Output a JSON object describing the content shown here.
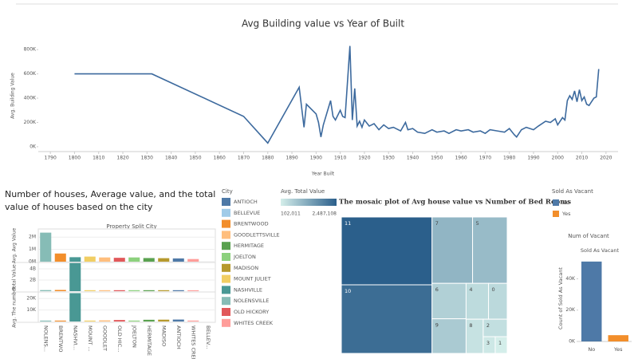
{
  "chart_data": [
    {
      "type": "line",
      "title": "Avg Building value vs Year of Built",
      "x_label": "Year Built",
      "y_label": "Avg. Building Value",
      "color": "#3d6a9e",
      "x": [
        1800,
        1832,
        1870,
        1880,
        1893,
        1895,
        1896,
        1900,
        1901,
        1902,
        1903,
        1906,
        1907,
        1908,
        1910,
        1911,
        1912,
        1914,
        1915,
        1916,
        1917,
        1918,
        1919,
        1920,
        1922,
        1924,
        1926,
        1928,
        1930,
        1932,
        1935,
        1937,
        1938,
        1940,
        1942,
        1945,
        1948,
        1950,
        1953,
        1955,
        1958,
        1960,
        1963,
        1965,
        1968,
        1970,
        1972,
        1975,
        1978,
        1980,
        1982,
        1983,
        1985,
        1987,
        1990,
        1992,
        1995,
        1997,
        1999,
        2000,
        2002,
        2003,
        2004,
        2005,
        2006,
        2007,
        2008,
        2009,
        2010,
        2011,
        2012,
        2013,
        2014,
        2015,
        2016,
        2017
      ],
      "values": [
        600000,
        600000,
        250000,
        30000,
        490000,
        160000,
        350000,
        270000,
        200000,
        80000,
        180000,
        380000,
        250000,
        220000,
        300000,
        250000,
        240000,
        830000,
        220000,
        480000,
        170000,
        210000,
        160000,
        220000,
        170000,
        190000,
        140000,
        180000,
        150000,
        160000,
        130000,
        200000,
        140000,
        150000,
        120000,
        110000,
        140000,
        120000,
        130000,
        110000,
        140000,
        130000,
        140000,
        120000,
        130000,
        110000,
        140000,
        130000,
        120000,
        150000,
        100000,
        80000,
        140000,
        160000,
        140000,
        170000,
        210000,
        200000,
        230000,
        180000,
        240000,
        220000,
        380000,
        420000,
        390000,
        460000,
        370000,
        470000,
        380000,
        410000,
        350000,
        340000,
        370000,
        400000,
        410000,
        640000
      ],
      "xlim": [
        1785,
        2025
      ],
      "ylim": [
        -40000,
        880000
      ],
      "xticks": [
        1790,
        1800,
        1810,
        1820,
        1830,
        1840,
        1850,
        1860,
        1870,
        1880,
        1890,
        1900,
        1910,
        1920,
        1930,
        1940,
        1950,
        1960,
        1970,
        1980,
        1990,
        2000,
        2010,
        2020
      ],
      "yticks": [
        {
          "value": 0,
          "label": "0K"
        },
        {
          "value": 200000,
          "label": "200K"
        },
        {
          "value": 400000,
          "label": "400K"
        },
        {
          "value": 600000,
          "label": "600K"
        },
        {
          "value": 800000,
          "label": "800K"
        }
      ]
    },
    {
      "type": "small-multiples-bar",
      "title": "Number of houses, Average value, and the total value of houses based on the city",
      "subtitle": "Property Split City",
      "categories": [
        "NOLENS...",
        "BRENTWO",
        "NASHVI...",
        "MOUNT ...",
        "GOODLET",
        "OLD HIC...",
        "JOELTON",
        "HERMITAGE",
        "MADISO",
        "ANTIOCH",
        "WHITES CREEK",
        "BELLEV..."
      ],
      "category_colors": [
        "#86bcb6",
        "#f28e2b",
        "#499894",
        "#f1ce63",
        "#ffbe7d",
        "#e15759",
        "#8cd17d",
        "#59a14f",
        "#b6992d",
        "#4e79a7",
        "#ff9d9a",
        "#a0cbe8"
      ],
      "panels": [
        {
          "label": "Avg. Avg Value",
          "ylim": [
            0,
            2600000
          ],
          "yticks": [
            {
              "value": 0,
              "label": "0M"
            },
            {
              "value": 1000000,
              "label": "1M"
            },
            {
              "value": 2000000,
              "label": "2M"
            }
          ],
          "values": [
            2300000,
            600000,
            300000,
            350000,
            280000,
            250000,
            280000,
            230000,
            220000,
            200000,
            150000,
            null
          ]
        },
        {
          "label": "Total Value",
          "ylim": [
            0,
            5000000000
          ],
          "yticks": [
            {
              "value": 2000000000,
              "label": "2B"
            },
            {
              "value": 4000000000,
              "label": "4B"
            }
          ],
          "values": [
            50000000,
            80000000,
            4900000000,
            30000000,
            30000000,
            30000000,
            30000000,
            30000000,
            30000000,
            30000000,
            20000000,
            null
          ]
        },
        {
          "label": "Avg. The number",
          "ylim": [
            0,
            25000
          ],
          "yticks": [
            {
              "value": 10000,
              "label": "10K"
            },
            {
              "value": 20000,
              "label": "20K"
            }
          ],
          "values": [
            100,
            100,
            24000,
            100,
            300,
            600,
            100,
            800,
            900,
            1000,
            100,
            null
          ]
        }
      ],
      "legend": {
        "title": "City",
        "items": [
          {
            "name": "ANTIOCH",
            "color": "#4e79a7"
          },
          {
            "name": "BELLEVUE",
            "color": "#a0cbe8"
          },
          {
            "name": "BRENTWOOD",
            "color": "#f28e2b"
          },
          {
            "name": "GOODLETTSVILLE",
            "color": "#ffbe7d"
          },
          {
            "name": "HERMITAGE",
            "color": "#59a14f"
          },
          {
            "name": "JOELTON",
            "color": "#8cd17d"
          },
          {
            "name": "MADISON",
            "color": "#b6992d"
          },
          {
            "name": "MOUNT JULIET",
            "color": "#f1ce63"
          },
          {
            "name": "NASHVILLE",
            "color": "#499894"
          },
          {
            "name": "NOLENSVILLE",
            "color": "#86bcb6"
          },
          {
            "name": "OLD HICKORY",
            "color": "#e15759"
          },
          {
            "name": "WHITES CREEK",
            "color": "#ff9d9a"
          }
        ]
      }
    },
    {
      "type": "treemap",
      "title": "The mosaic plot of Avg house value vs Number of Bed Rooms",
      "color_legend": {
        "title": "Avg. Total Value",
        "range": [
          {
            "value": 102011,
            "label": "102,011"
          },
          {
            "value": 2487108,
            "label": "2,487,108"
          }
        ],
        "colors": [
          "#d4eeea",
          "#2b5f8b"
        ]
      },
      "cells": [
        {
          "label": "11",
          "size": 9180,
          "value": 2487108
        },
        {
          "label": "10",
          "size": 9288,
          "value": 2250000
        },
        {
          "label": "7",
          "size": 4015,
          "value": 1050000
        },
        {
          "label": "5",
          "size": 3431,
          "value": 950000
        },
        {
          "label": "6",
          "size": 1800,
          "value": 600000
        },
        {
          "label": "9",
          "size": 1760,
          "value": 700000
        },
        {
          "label": "4",
          "size": 1200,
          "value": 420000
        },
        {
          "label": "0",
          "size": 1000,
          "value": 460000
        },
        {
          "label": "8",
          "size": 875,
          "value": 300000
        },
        {
          "label": "2",
          "size": 625,
          "value": 350000
        },
        {
          "label": "3",
          "size": 300,
          "value": 200000
        },
        {
          "label": "1",
          "size": 300,
          "value": 102011
        }
      ]
    },
    {
      "type": "bar",
      "title": "Num of Vacant",
      "subtitle": "Sold As Vacant",
      "y_label": "Count of Sold As Vacant",
      "categories": [
        "No",
        "Yes"
      ],
      "values": [
        51000,
        4000
      ],
      "colors": [
        "#4e79a7",
        "#f28e2b"
      ],
      "ylim": [
        0,
        55000
      ],
      "yticks": [
        {
          "value": 0,
          "label": "0K"
        },
        {
          "value": 20000,
          "label": "20K"
        },
        {
          "value": 40000,
          "label": "40K"
        }
      ],
      "legend": {
        "title": "Sold As Vacant"
      }
    }
  ]
}
